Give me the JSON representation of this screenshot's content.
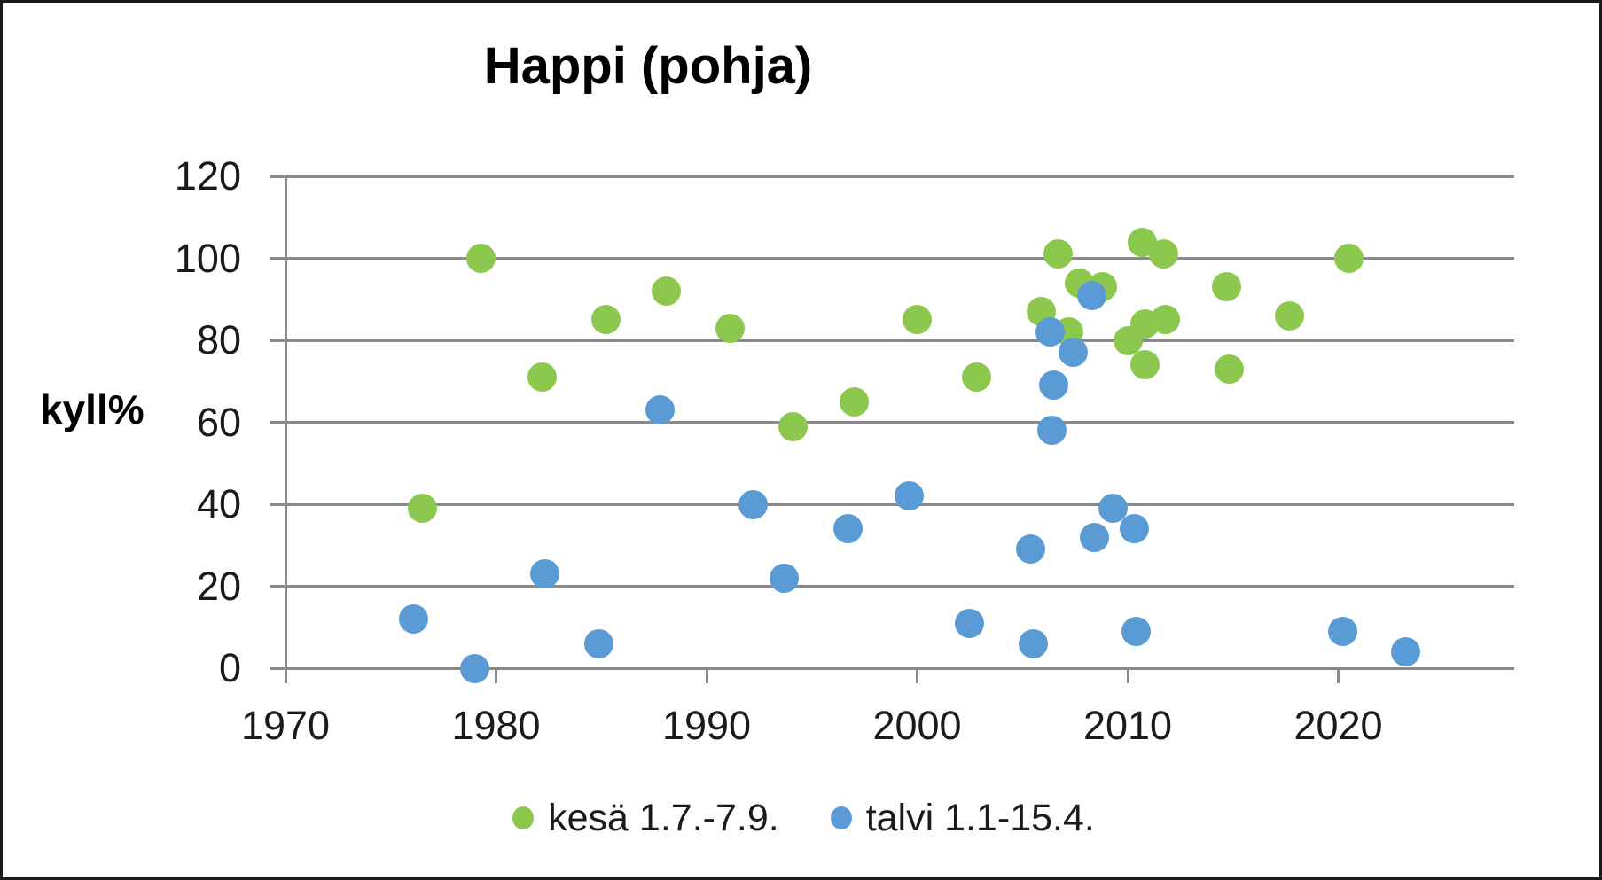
{
  "title": "Happi (pohja)",
  "y_axis": {
    "label": "kyll%",
    "ticks": [
      "120",
      "100",
      "80",
      "60",
      "40",
      "20",
      "0"
    ]
  },
  "x_axis": {
    "ticks": [
      "1970",
      "1980",
      "1990",
      "2000",
      "2010",
      "2020"
    ]
  },
  "colors": {
    "summer_green": "#8dc84e",
    "winter_blue": "#5b9bd5",
    "grid_grey": "#8a8a8a",
    "text_black": "#1a1a1a"
  },
  "legend": [
    {
      "label": "kesä 1.7.-7.9.",
      "color": "#8dc84e"
    },
    {
      "label": "talvi 1.1-15.4.",
      "color": "#5b9bd5"
    }
  ],
  "chart_data": {
    "type": "scatter",
    "title": "Happi (pohja)",
    "xlabel": "",
    "ylabel": "kyll%",
    "xlim": [
      1970,
      2028.5
    ],
    "ylim": [
      0,
      120
    ],
    "x_major_unit": 10,
    "y_major_unit": 20,
    "grid": "horizontal",
    "legend_position": "bottom",
    "series": [
      {
        "name": "kesä 1.7.-7.9.",
        "color": "#8dc84e",
        "points": [
          [
            1976.5,
            39
          ],
          [
            1979.3,
            100
          ],
          [
            1982.2,
            71
          ],
          [
            1985.2,
            85
          ],
          [
            1988.1,
            92
          ],
          [
            1991.1,
            83
          ],
          [
            1994.1,
            59
          ],
          [
            1997.0,
            65
          ],
          [
            2000.0,
            85
          ],
          [
            2002.8,
            71
          ],
          [
            2005.9,
            87
          ],
          [
            2006.7,
            101
          ],
          [
            2007.2,
            82
          ],
          [
            2007.7,
            94
          ],
          [
            2008.8,
            93
          ],
          [
            2010.0,
            80
          ],
          [
            2010.7,
            104
          ],
          [
            2010.8,
            74
          ],
          [
            2010.8,
            84
          ],
          [
            2011.7,
            101
          ],
          [
            2011.8,
            85
          ],
          [
            2014.7,
            93
          ],
          [
            2014.8,
            73
          ],
          [
            2017.7,
            86
          ],
          [
            2020.5,
            100
          ]
        ]
      },
      {
        "name": "talvi 1.1-15.4.",
        "color": "#5b9bd5",
        "points": [
          [
            1976.1,
            12
          ],
          [
            1979.0,
            0
          ],
          [
            1982.3,
            23
          ],
          [
            1984.9,
            6
          ],
          [
            1987.8,
            63
          ],
          [
            1992.2,
            40
          ],
          [
            1993.7,
            22
          ],
          [
            1996.7,
            34
          ],
          [
            1999.6,
            42
          ],
          [
            2002.5,
            11
          ],
          [
            2005.4,
            29
          ],
          [
            2005.5,
            6
          ],
          [
            2006.3,
            82
          ],
          [
            2006.5,
            69
          ],
          [
            2006.4,
            58
          ],
          [
            2007.4,
            77
          ],
          [
            2008.3,
            91
          ],
          [
            2008.4,
            32
          ],
          [
            2009.3,
            39
          ],
          [
            2010.3,
            34
          ],
          [
            2010.4,
            9
          ],
          [
            2020.2,
            9
          ],
          [
            2023.2,
            4
          ]
        ]
      }
    ]
  }
}
